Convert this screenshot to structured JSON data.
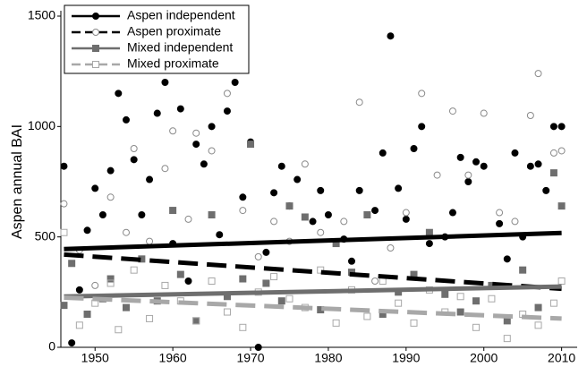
{
  "chart_data": {
    "type": "scatter",
    "y_label": "Aspen annual BAI",
    "xlim": [
      1945.6,
      2012
    ],
    "xticks": [
      1950,
      1960,
      1970,
      1980,
      1990,
      2000,
      2010
    ],
    "ylim": [
      0,
      1500
    ],
    "yticks": [
      0,
      500,
      1000,
      1500
    ],
    "legend": "top-left",
    "series": [
      {
        "name": "Aspen independent",
        "color": "#000000",
        "marker": "circle",
        "filled": true,
        "dashed": false,
        "x": [
          1946,
          1947,
          1948,
          1949,
          1950,
          1951,
          1952,
          1953,
          1954,
          1955,
          1956,
          1957,
          1958,
          1959,
          1960,
          1961,
          1962,
          1963,
          1964,
          1965,
          1966,
          1967,
          1968,
          1969,
          1970,
          1971,
          1972,
          1973,
          1974,
          1975,
          1976,
          1978,
          1979,
          1980,
          1982,
          1983,
          1984,
          1986,
          1987,
          1988,
          1989,
          1990,
          1991,
          1992,
          1993,
          1995,
          1996,
          1997,
          1998,
          1999,
          2000,
          2002,
          2003,
          2004,
          2005,
          2006,
          2007,
          2008,
          2009,
          2010
        ],
        "values": [
          820,
          20,
          260,
          530,
          720,
          600,
          800,
          1150,
          1030,
          850,
          600,
          760,
          1060,
          1200,
          470,
          1080,
          300,
          920,
          830,
          1000,
          510,
          1070,
          1200,
          680,
          930,
          0,
          430,
          700,
          820,
          640,
          760,
          570,
          710,
          600,
          490,
          390,
          710,
          620,
          880,
          1410,
          720,
          580,
          900,
          1000,
          470,
          500,
          610,
          860,
          750,
          840,
          820,
          560,
          400,
          880,
          500,
          820,
          830,
          710,
          1000,
          1000
        ],
        "trend": {
          "x": [
            1946,
            2010
          ],
          "values": [
            445,
            518
          ]
        }
      },
      {
        "name": "Aspen proximate",
        "color": "#8a8a8a",
        "marker": "circle",
        "filled": false,
        "dashed": true,
        "line_color": "#000000",
        "x": [
          1946,
          1948,
          1950,
          1952,
          1954,
          1955,
          1957,
          1959,
          1960,
          1962,
          1963,
          1965,
          1967,
          1969,
          1971,
          1973,
          1975,
          1977,
          1979,
          1982,
          1984,
          1986,
          1988,
          1990,
          1992,
          1994,
          1996,
          1998,
          2000,
          2002,
          2004,
          2006,
          2007,
          2009,
          2010
        ],
        "values": [
          650,
          440,
          280,
          680,
          520,
          900,
          480,
          810,
          980,
          580,
          970,
          890,
          1150,
          620,
          410,
          570,
          480,
          830,
          520,
          570,
          1110,
          300,
          450,
          610,
          1150,
          780,
          1070,
          780,
          1060,
          610,
          570,
          1050,
          1240,
          880,
          890
        ],
        "trend": {
          "x": [
            1946,
            2010
          ],
          "values": [
            420,
            265
          ]
        }
      },
      {
        "name": "Mixed independent",
        "color": "#6e6e6e",
        "marker": "square",
        "filled": true,
        "dashed": false,
        "x": [
          1946,
          1947,
          1949,
          1951,
          1952,
          1954,
          1956,
          1958,
          1960,
          1961,
          1963,
          1965,
          1967,
          1969,
          1970,
          1972,
          1974,
          1975,
          1977,
          1979,
          1981,
          1983,
          1985,
          1987,
          1989,
          1991,
          1993,
          1995,
          1997,
          1999,
          2001,
          2003,
          2005,
          2007,
          2009,
          2010
        ],
        "values": [
          190,
          380,
          150,
          220,
          310,
          180,
          400,
          210,
          620,
          330,
          120,
          600,
          230,
          310,
          920,
          290,
          210,
          640,
          590,
          170,
          470,
          340,
          600,
          150,
          250,
          330,
          520,
          240,
          160,
          210,
          280,
          120,
          350,
          180,
          790,
          640
        ],
        "trend": {
          "x": [
            1946,
            2010
          ],
          "values": [
            230,
            275
          ]
        }
      },
      {
        "name": "Mixed proximate",
        "color": "#a8a8a8",
        "marker": "square",
        "filled": false,
        "dashed": true,
        "x": [
          1946,
          1948,
          1950,
          1952,
          1953,
          1955,
          1957,
          1959,
          1961,
          1963,
          1965,
          1967,
          1969,
          1971,
          1973,
          1975,
          1977,
          1979,
          1981,
          1983,
          1985,
          1987,
          1989,
          1991,
          1993,
          1995,
          1997,
          1999,
          2001,
          2003,
          2005,
          2007,
          2009,
          2010
        ],
        "values": [
          520,
          100,
          200,
          290,
          80,
          350,
          130,
          280,
          210,
          120,
          300,
          160,
          90,
          250,
          320,
          220,
          180,
          350,
          110,
          260,
          140,
          300,
          200,
          110,
          260,
          160,
          230,
          90,
          220,
          40,
          150,
          100,
          200,
          300
        ],
        "trend": {
          "x": [
            1946,
            2010
          ],
          "values": [
            225,
            130
          ]
        }
      }
    ]
  }
}
